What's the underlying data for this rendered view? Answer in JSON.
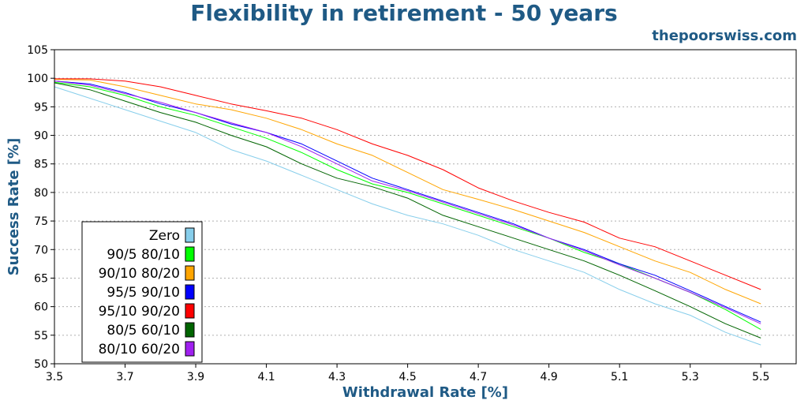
{
  "title": "Flexibility in retirement - 50 years",
  "site": "thepoorswiss.com",
  "chart_data": {
    "type": "line",
    "title": "Flexibility in retirement - 50 years",
    "xlabel": "Withdrawal Rate [%]",
    "ylabel": "Success Rate [%]",
    "xlim": [
      3.5,
      5.6
    ],
    "ylim": [
      50,
      105
    ],
    "xticks": [
      "3.5",
      "3.7",
      "3.9",
      "4.1",
      "4.3",
      "4.5",
      "4.7",
      "4.9",
      "5.1",
      "5.3",
      "5.5"
    ],
    "yticks": [
      "50",
      "55",
      "60",
      "65",
      "70",
      "75",
      "80",
      "85",
      "90",
      "95",
      "100",
      "105"
    ],
    "grid": true,
    "legend_position": "bottom-left",
    "x": [
      3.5,
      3.6,
      3.7,
      3.8,
      3.9,
      4.0,
      4.1,
      4.2,
      4.3,
      4.4,
      4.5,
      4.6,
      4.7,
      4.8,
      4.9,
      5.0,
      5.1,
      5.2,
      5.3,
      5.4,
      5.5
    ],
    "series": [
      {
        "name": "Zero",
        "color": "#87ceeb",
        "values": [
          98.5,
          96.5,
          94.5,
          92.5,
          90.5,
          87.5,
          85.5,
          83.0,
          80.5,
          78.0,
          76.0,
          74.5,
          72.5,
          70.0,
          68.0,
          66.0,
          63.0,
          60.5,
          58.5,
          55.5,
          53.3
        ]
      },
      {
        "name": "90/5 80/10",
        "color": "#00ff00",
        "values": [
          99.3,
          98.5,
          97.0,
          95.0,
          93.5,
          91.5,
          89.5,
          87.0,
          84.0,
          81.5,
          80.0,
          78.0,
          76.0,
          74.0,
          72.0,
          69.5,
          67.5,
          65.0,
          62.5,
          59.5,
          56.0
        ]
      },
      {
        "name": "90/10 80/20",
        "color": "#ffa500",
        "values": [
          99.8,
          99.7,
          98.5,
          97.0,
          95.5,
          94.5,
          93.0,
          91.0,
          88.5,
          86.5,
          83.5,
          80.5,
          78.8,
          77.0,
          75.0,
          73.0,
          70.5,
          68.0,
          66.0,
          63.0,
          60.5
        ]
      },
      {
        "name": "95/5 90/10",
        "color": "#0000ff",
        "values": [
          99.5,
          99.0,
          97.5,
          95.5,
          94.0,
          92.0,
          90.5,
          88.5,
          85.5,
          82.5,
          80.5,
          78.5,
          76.5,
          74.5,
          72.0,
          70.0,
          67.5,
          65.5,
          62.8,
          60.0,
          57.3
        ]
      },
      {
        "name": "95/10 90/20",
        "color": "#ff0000",
        "values": [
          99.9,
          99.9,
          99.5,
          98.5,
          97.0,
          95.5,
          94.3,
          93.0,
          91.0,
          88.5,
          86.5,
          84.0,
          80.8,
          78.5,
          76.5,
          74.8,
          72.0,
          70.5,
          68.0,
          65.5,
          63.0
        ]
      },
      {
        "name": "80/5 60/10",
        "color": "#006400",
        "values": [
          99.2,
          98.0,
          96.0,
          94.0,
          92.3,
          90.0,
          88.0,
          85.0,
          82.5,
          81.0,
          79.0,
          76.0,
          74.0,
          72.0,
          70.0,
          68.0,
          65.5,
          62.8,
          60.0,
          57.0,
          54.5
        ]
      },
      {
        "name": "80/10 60/20",
        "color": "#a020f0",
        "values": [
          99.5,
          98.8,
          97.3,
          95.8,
          94.0,
          92.2,
          90.5,
          88.0,
          85.0,
          82.0,
          80.3,
          78.3,
          76.3,
          74.3,
          72.0,
          69.8,
          67.3,
          65.0,
          62.5,
          59.8,
          57.0
        ]
      }
    ]
  }
}
